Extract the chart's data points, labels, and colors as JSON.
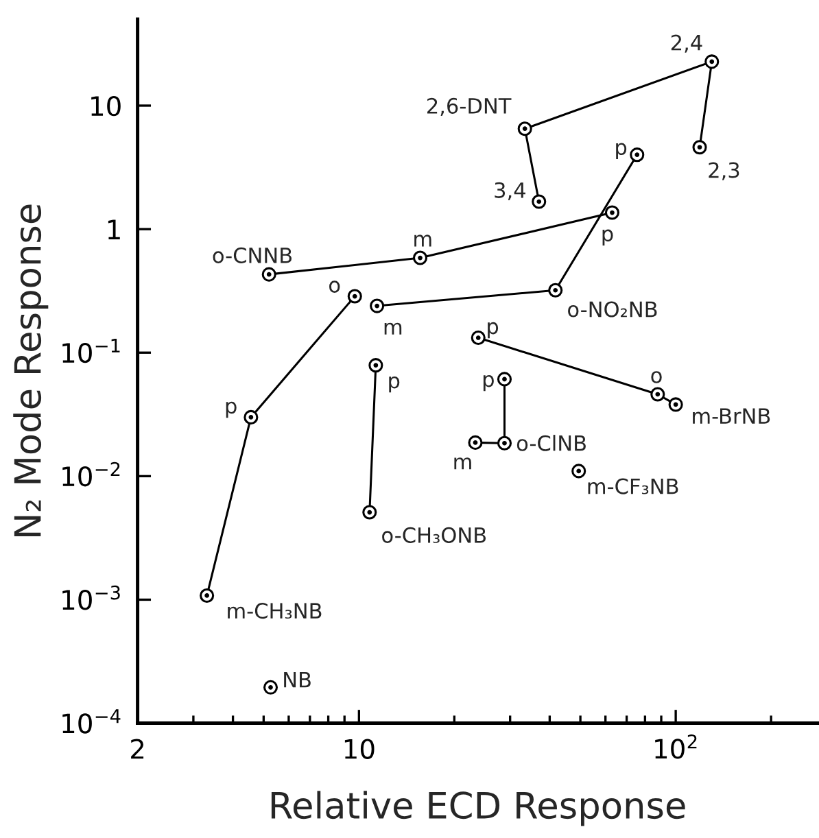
{
  "chart_data": {
    "type": "line",
    "xlabel": "Relative ECD Response",
    "ylabel": "N₂ Mode Response",
    "log": "xy",
    "marker": "circle",
    "line_style": "solid",
    "grid": false,
    "legend": false,
    "xlim": [
      2,
      280
    ],
    "ylim": [
      0.0001,
      50
    ],
    "xticks": [
      2,
      {
        "value": 3,
        "label": null
      },
      {
        "value": 4,
        "label": null
      },
      {
        "value": 5,
        "label": null
      },
      {
        "value": 6,
        "label": null
      },
      {
        "value": 7,
        "label": null
      },
      {
        "value": 8,
        "label": null
      },
      {
        "value": 9,
        "label": null
      },
      10,
      {
        "value": 20,
        "label": null
      },
      {
        "value": 30,
        "label": null
      },
      {
        "value": 40,
        "label": null
      },
      {
        "value": 50,
        "label": null
      },
      {
        "value": 60,
        "label": null
      },
      {
        "value": 70,
        "label": null
      },
      {
        "value": 80,
        "label": null
      },
      {
        "value": 90,
        "label": null
      },
      {
        "value": 100,
        "label": "10$^{2}$"
      },
      {
        "value": 200,
        "label": null
      }
    ],
    "yticks": [
      {
        "value": 0.0001,
        "label": "10$^{−4}$"
      },
      {
        "value": 0.001,
        "label": "10$^{−3}$"
      },
      {
        "value": 0.01,
        "label": "10$^{−2}$"
      },
      {
        "value": 0.1,
        "label": "10$^{−1}$"
      },
      1,
      10
    ],
    "series": [
      {
        "color": "#000000",
        "x": [
          37,
          33.4,
          130,
          119
        ],
        "values": [
          1.67,
          6.5,
          22.7,
          4.6
        ]
      },
      {
        "color": "#000000",
        "x": [
          11.4,
          41.7,
          75.5
        ],
        "values": [
          0.239,
          0.32,
          4.0
        ]
      },
      {
        "color": "#000000",
        "x": [
          5.2,
          15.6,
          63
        ],
        "values": [
          0.43,
          0.585,
          1.36
        ]
      },
      {
        "color": "#000000",
        "x": [
          9.7,
          4.56,
          3.31
        ],
        "values": [
          0.286,
          0.03,
          0.00108
        ]
      },
      {
        "color": "#000000",
        "x": [
          11.3,
          10.8
        ],
        "values": [
          0.079,
          0.0051
        ]
      },
      {
        "color": "#000000",
        "x": [
          23.8,
          87.7,
          100
        ],
        "values": [
          0.132,
          0.046,
          0.038
        ]
      },
      {
        "color": "#000000",
        "x": [
          28.8,
          28.8,
          23.3
        ],
        "values": [
          0.061,
          0.0185,
          0.0187
        ]
      },
      {
        "type": "scatter",
        "color": "#000000",
        "x": [
          49.4,
          5.26
        ],
        "values": [
          0.011,
          0.000195
        ]
      }
    ],
    "annotations": [
      {
        "text": "2,4",
        "x": 130,
        "y": 22.7
      },
      {
        "text": "2,3",
        "x": 119,
        "y": 4.6
      },
      {
        "text": "2,6-DNT",
        "x": 33.4,
        "y": 6.5
      },
      {
        "text": "3,4",
        "x": 37,
        "y": 1.67
      },
      {
        "text": "p",
        "x": 75.5,
        "y": 4.0
      },
      {
        "text": "o-NO₂NB",
        "x": 41.7,
        "y": 0.32
      },
      {
        "text": "m",
        "x": 11.4,
        "y": 0.239
      },
      {
        "text": "o-CNNB",
        "x": 5.2,
        "y": 0.43
      },
      {
        "text": "m",
        "x": 15.6,
        "y": 0.585
      },
      {
        "text": "p",
        "x": 63,
        "y": 1.36
      },
      {
        "text": "o",
        "x": 9.7,
        "y": 0.286
      },
      {
        "text": "p",
        "x": 4.56,
        "y": 0.03
      },
      {
        "text": "m-CH₃NB",
        "x": 3.31,
        "y": 0.00108
      },
      {
        "text": "p",
        "x": 11.3,
        "y": 0.079
      },
      {
        "text": "o-CH₃ONB",
        "x": 10.8,
        "y": 0.0051
      },
      {
        "text": "p",
        "x": 23.8,
        "y": 0.132
      },
      {
        "text": "o",
        "x": 87.7,
        "y": 0.046
      },
      {
        "text": "m-BrNB",
        "x": 100,
        "y": 0.038
      },
      {
        "text": "p",
        "x": 28.8,
        "y": 0.061
      },
      {
        "text": "o-ClNB",
        "x": 28.8,
        "y": 0.0185
      },
      {
        "text": "m",
        "x": 23.3,
        "y": 0.0187
      },
      {
        "text": "m-CF₃NB",
        "x": 49.4,
        "y": 0.011
      },
      {
        "text": "NB",
        "x": 5.26,
        "y": 0.000195
      }
    ]
  }
}
